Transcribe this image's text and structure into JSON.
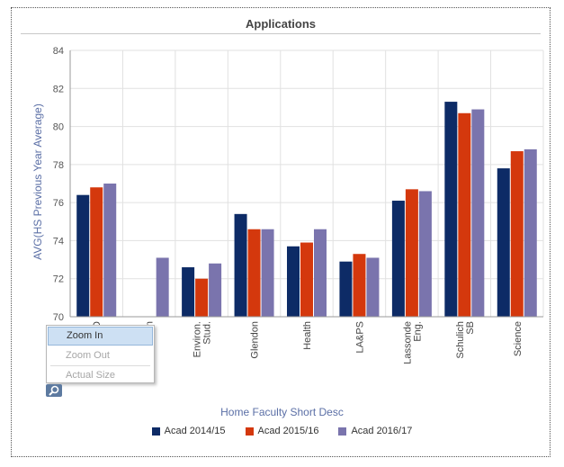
{
  "chart_data": {
    "type": "bar",
    "title": "Applications",
    "xlabel": "Home Faculty Short Desc",
    "ylabel": "AVG(HS Previous Year Average)",
    "ylim": [
      70,
      84
    ],
    "yticks": [
      70,
      72,
      74,
      76,
      78,
      80,
      82,
      84
    ],
    "grid": true,
    "legend_position": "bottom",
    "categories": [
      [
        "D"
      ],
      [
        "n"
      ],
      [
        "Environ.",
        "Stud."
      ],
      [
        "Glendon"
      ],
      [
        "Health"
      ],
      [
        "LA&PS"
      ],
      [
        "Lassonde",
        "Eng."
      ],
      [
        "Schulich",
        "SB"
      ],
      [
        "Science"
      ]
    ],
    "series": [
      {
        "name": "Acad 2014/15",
        "color": "#0d2b66",
        "values": [
          76.4,
          null,
          72.6,
          75.4,
          73.7,
          72.9,
          76.1,
          81.3,
          77.8
        ]
      },
      {
        "name": "Acad 2015/16",
        "color": "#d4380d",
        "values": [
          76.8,
          null,
          72.0,
          74.6,
          73.9,
          73.3,
          76.7,
          80.7,
          78.7
        ]
      },
      {
        "name": "Acad 2016/17",
        "color": "#7a74ad",
        "values": [
          77.0,
          73.1,
          72.8,
          74.6,
          74.6,
          73.1,
          76.6,
          80.9,
          78.8
        ]
      }
    ]
  },
  "context_menu": {
    "zoom_in": "Zoom In",
    "zoom_out": "Zoom Out",
    "actual_size": "Actual Size"
  },
  "zoom_button_icon": "magnifier-icon"
}
